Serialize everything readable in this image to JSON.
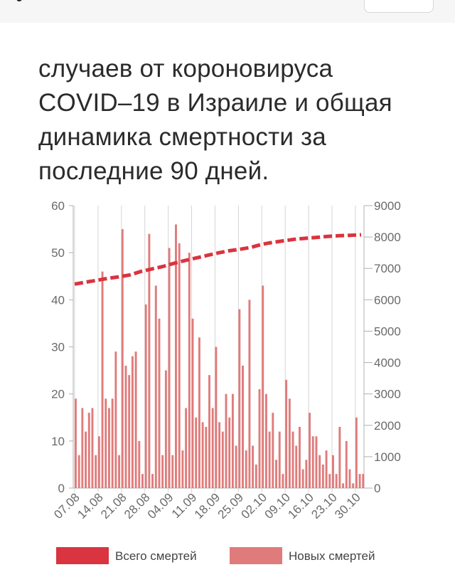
{
  "article": {
    "lines": [
      "случаев от короновируса",
      "COVID–19 в Израиле и общая",
      "динамика смертности за",
      "последние 90 дней."
    ]
  },
  "colors": {
    "bars": "#e07b7b",
    "total_line": "#d9343f",
    "axis": "#b0b0b0",
    "text": "#6a6a6a"
  },
  "chart_data": {
    "type": "bar",
    "left_axis": {
      "ylim": [
        0,
        60
      ],
      "ticks": [
        "0",
        "10",
        "20",
        "30",
        "40",
        "50",
        "60"
      ]
    },
    "right_axis": {
      "ylim": [
        0,
        9000
      ],
      "ticks": [
        "0",
        "1000",
        "2000",
        "3000",
        "4000",
        "5000",
        "6000",
        "7000",
        "8000",
        "9000"
      ]
    },
    "x_tick_labels": [
      "07.08",
      "14.08",
      "21.08",
      "28.08",
      "04.09",
      "11.09",
      "18.09",
      "25.09",
      "02.10",
      "09.10",
      "16.10",
      "23.10",
      "30.10"
    ],
    "series": [
      {
        "name": "Новых смертей",
        "type": "bar",
        "axis": "left",
        "values": [
          19,
          7,
          17,
          12,
          16,
          17,
          7,
          11,
          46,
          19,
          17,
          19,
          29,
          7,
          55,
          26,
          24,
          28,
          29,
          10,
          3,
          39,
          54,
          3,
          43,
          36,
          7,
          25,
          51,
          7,
          56,
          52,
          8,
          17,
          50,
          36,
          15,
          32,
          14,
          13,
          24,
          17,
          30,
          14,
          12,
          20,
          15,
          20,
          9,
          38,
          26,
          8,
          40,
          9,
          5,
          21,
          43,
          20,
          12,
          16,
          6,
          12,
          3,
          23,
          19,
          12,
          9,
          13,
          4,
          6,
          16,
          11,
          11,
          7,
          5,
          8,
          3,
          7,
          3,
          13,
          1,
          10,
          4,
          1,
          15,
          3,
          3
        ]
      },
      {
        "name": "Всего смертей",
        "type": "line",
        "axis": "right",
        "values": [
          6500,
          6560,
          6620,
          6680,
          6730,
          6790,
          6900,
          6980,
          7060,
          7160,
          7250,
          7330,
          7410,
          7490,
          7560,
          7610,
          7670,
          7770,
          7830,
          7880,
          7930,
          7960,
          7990,
          8020,
          8040,
          8055,
          8070
        ]
      }
    ],
    "legend": [
      {
        "label": "Всего смертей",
        "kind": "line"
      },
      {
        "label": "Новых смертей",
        "kind": "bar"
      }
    ],
    "legend_position": "bottom",
    "grid": true
  }
}
